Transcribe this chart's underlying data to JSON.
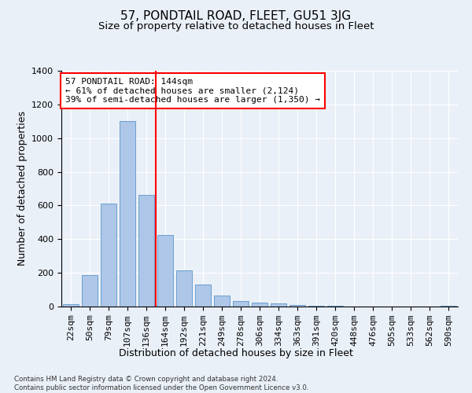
{
  "title": "57, PONDTAIL ROAD, FLEET, GU51 3JG",
  "subtitle": "Size of property relative to detached houses in Fleet",
  "xlabel": "Distribution of detached houses by size in Fleet",
  "ylabel": "Number of detached properties",
  "footnote": "Contains HM Land Registry data © Crown copyright and database right 2024.\nContains public sector information licensed under the Open Government Licence v3.0.",
  "categories": [
    "22sqm",
    "50sqm",
    "79sqm",
    "107sqm",
    "136sqm",
    "164sqm",
    "192sqm",
    "221sqm",
    "249sqm",
    "278sqm",
    "306sqm",
    "334sqm",
    "363sqm",
    "391sqm",
    "420sqm",
    "448sqm",
    "476sqm",
    "505sqm",
    "533sqm",
    "562sqm",
    "590sqm"
  ],
  "values": [
    15,
    185,
    610,
    1100,
    665,
    425,
    215,
    130,
    65,
    35,
    25,
    20,
    10,
    5,
    3,
    2,
    1,
    1,
    0,
    0,
    5
  ],
  "bar_color": "#aec6e8",
  "bar_edge_color": "#5a96c8",
  "vline_x": 4.5,
  "vline_color": "red",
  "annotation_text": "57 PONDTAIL ROAD: 144sqm\n← 61% of detached houses are smaller (2,124)\n39% of semi-detached houses are larger (1,350) →",
  "annotation_box_color": "white",
  "annotation_box_edge": "red",
  "ylim": [
    0,
    1400
  ],
  "yticks": [
    0,
    200,
    400,
    600,
    800,
    1000,
    1200,
    1400
  ],
  "bg_color": "#eaf0f8",
  "plot_bg_color": "#eaf0f8",
  "title_fontsize": 11,
  "subtitle_fontsize": 9.5,
  "label_fontsize": 9,
  "tick_fontsize": 8,
  "annot_fontsize": 8
}
